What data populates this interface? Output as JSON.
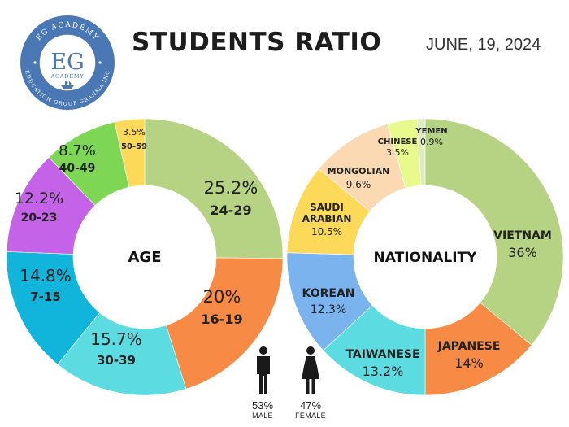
{
  "header": {
    "title": "STUDENTS RATIO",
    "date": "JUNE, 19, 2024"
  },
  "logo": {
    "top_text": "EG ACADEMY",
    "mark": "EG",
    "sub": "ACADEMY",
    "bottom_text": "EDUCATION GROUP GRANMA INC",
    "color": "#4a78b5",
    "icon": "ship-icon"
  },
  "gender": {
    "male": {
      "percent": "53%",
      "label": "MALE",
      "icon": "male-person-icon"
    },
    "female": {
      "percent": "47%",
      "label": "FEMALE",
      "icon": "female-person-icon"
    }
  },
  "chart_data": [
    {
      "type": "pie",
      "center_label": "AGE",
      "slices": [
        {
          "label": "24-29",
          "value": 25.2,
          "display": "25.2%",
          "color": "#b5d382"
        },
        {
          "label": "16-19",
          "value": 20.0,
          "display": "20%",
          "color": "#f78a45"
        },
        {
          "label": "30-39",
          "value": 15.7,
          "display": "15.7%",
          "color": "#5cdbe0"
        },
        {
          "label": "7-15",
          "value": 14.8,
          "display": "14.8%",
          "color": "#11b5dc"
        },
        {
          "label": "20-23",
          "value": 12.2,
          "display": "12.2%",
          "color": "#c462e8"
        },
        {
          "label": "40-49",
          "value": 8.7,
          "display": "8.7%",
          "color": "#7dd754"
        },
        {
          "label": "50-59",
          "value": 3.5,
          "display": "3.5%",
          "color": "#fdd95a"
        }
      ]
    },
    {
      "type": "pie",
      "center_label": "NATIONALITY",
      "slices": [
        {
          "label": "VIETNAM",
          "value": 36.0,
          "display": "36%",
          "color": "#b5d382"
        },
        {
          "label": "JAPANESE",
          "value": 14.0,
          "display": "14%",
          "color": "#f78a45"
        },
        {
          "label": "TAIWANESE",
          "value": 13.2,
          "display": "13.2%",
          "color": "#5cdbe0"
        },
        {
          "label": "KOREAN",
          "value": 12.3,
          "display": "12.3%",
          "color": "#7bb3ef"
        },
        {
          "label": "SAUDI ARABIAN",
          "value": 10.5,
          "display": "10.5%",
          "color": "#fdd95a"
        },
        {
          "label": "MONGOLIAN",
          "value": 9.6,
          "display": "9.6%",
          "color": "#fbd9b3"
        },
        {
          "label": "CHINESE",
          "value": 3.5,
          "display": "3.5%",
          "color": "#e8f98e"
        },
        {
          "label": "YEMEN",
          "value": 0.9,
          "display": "0.9%",
          "color": "#ddecc4"
        }
      ]
    }
  ]
}
